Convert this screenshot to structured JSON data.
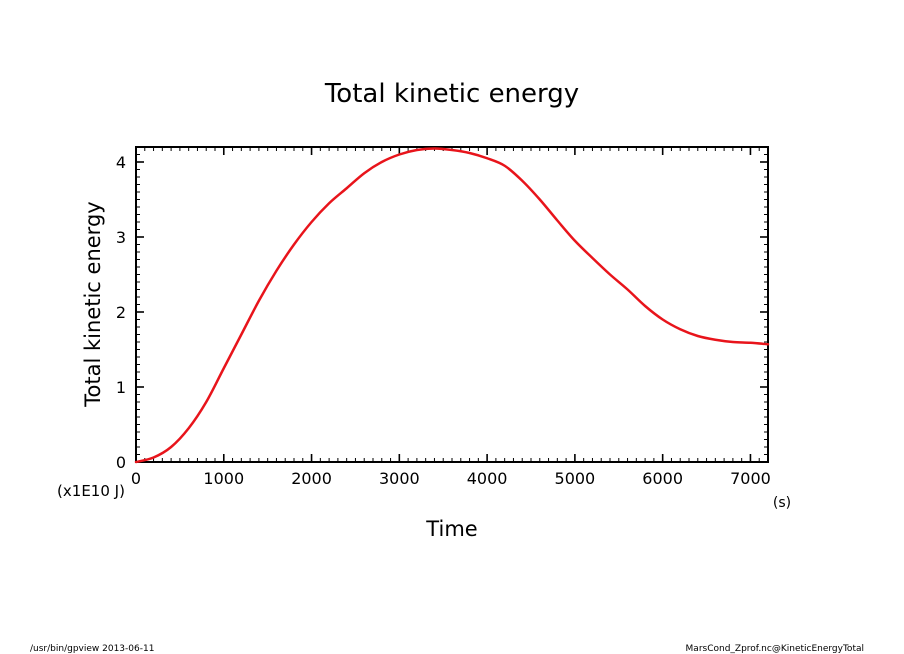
{
  "chart_data": {
    "type": "line",
    "title": "Total kinetic energy",
    "xlabel": "Time",
    "ylabel": "Total kinetic energy",
    "x_unit": "(s)",
    "y_unit": "(x1E10 J)",
    "xlim": [
      0,
      7200
    ],
    "ylim": [
      0,
      4.2
    ],
    "x_ticks": [
      0,
      1000,
      2000,
      3000,
      4000,
      5000,
      6000,
      7000
    ],
    "x_tick_labels": [
      "0",
      "1000",
      "2000",
      "3000",
      "4000",
      "5000",
      "6000",
      "7000"
    ],
    "y_ticks": [
      0,
      1,
      2,
      3,
      4
    ],
    "y_tick_labels": [
      "0",
      "1",
      "2",
      "3",
      "4"
    ],
    "grid": false,
    "line_color": "#e8141b",
    "series": [
      {
        "x": [
          0,
          200,
          400,
          600,
          800,
          1000,
          1200,
          1400,
          1600,
          1800,
          2000,
          2200,
          2400,
          2600,
          2800,
          3000,
          3200,
          3400,
          3600,
          3800,
          4000,
          4200,
          4400,
          4600,
          4800,
          5000,
          5200,
          5400,
          5600,
          5800,
          6000,
          6200,
          6400,
          6600,
          6800,
          7000,
          7200
        ],
        "y": [
          0.0,
          0.06,
          0.2,
          0.45,
          0.8,
          1.25,
          1.7,
          2.15,
          2.55,
          2.9,
          3.2,
          3.45,
          3.65,
          3.85,
          4.0,
          4.1,
          4.16,
          4.18,
          4.16,
          4.12,
          4.05,
          3.95,
          3.75,
          3.5,
          3.22,
          2.95,
          2.72,
          2.5,
          2.3,
          2.08,
          1.9,
          1.77,
          1.68,
          1.63,
          1.6,
          1.59,
          1.57
        ]
      }
    ]
  },
  "footer": {
    "left": "/usr/bin/gpview  2013-06-11",
    "right": "MarsCond_Zprof.nc@KineticEnergyTotal"
  }
}
